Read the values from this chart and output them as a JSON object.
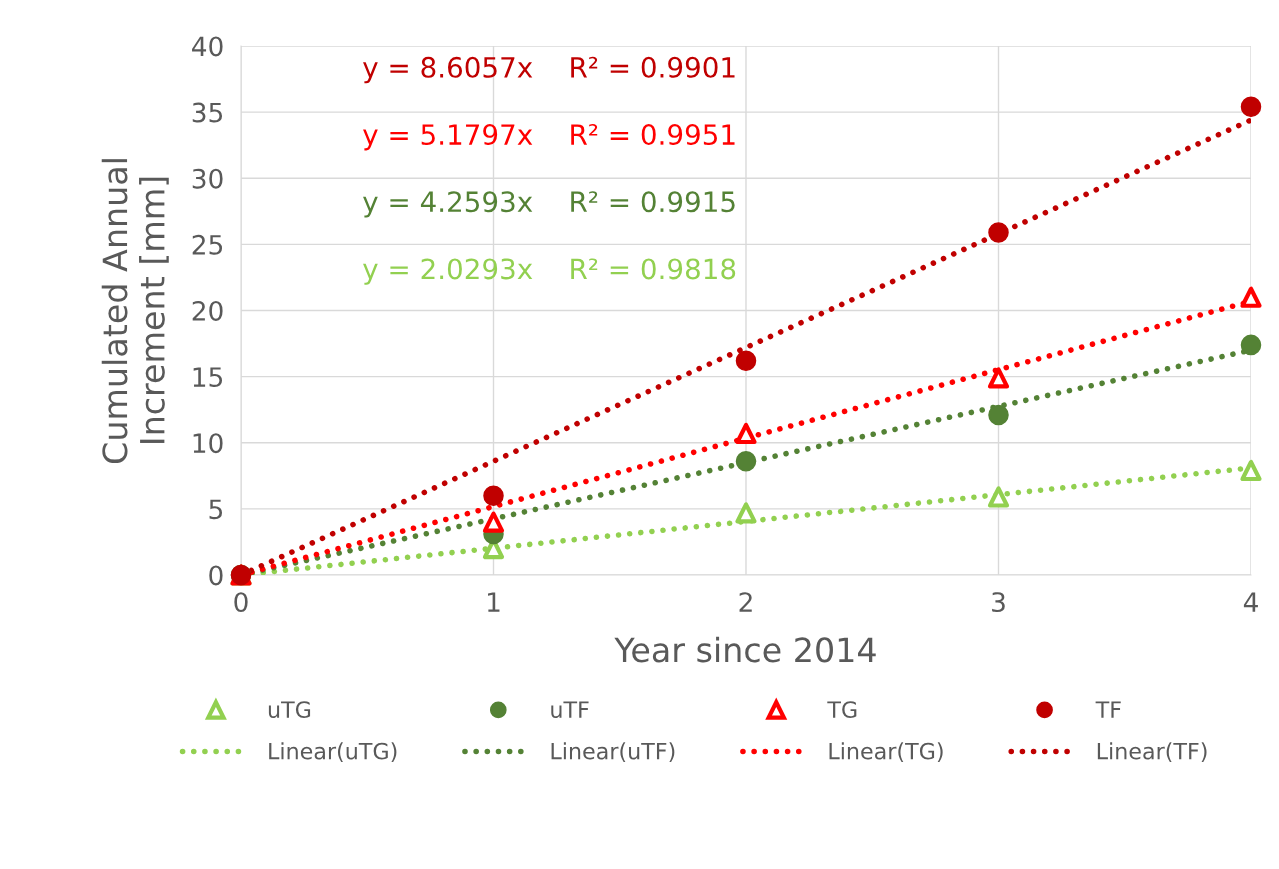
{
  "chart_data": {
    "type": "scatter",
    "xlabel": "Year since 2014",
    "ylabel": "Cumulated Annual\nIncrement [mm]",
    "xlim": [
      0,
      4
    ],
    "xticks": [
      0,
      1,
      2,
      3,
      4
    ],
    "ylim": [
      0,
      40
    ],
    "yticks": [
      0,
      5,
      10,
      15,
      20,
      25,
      30,
      35,
      40
    ],
    "grid": true,
    "legend": "bottom",
    "series": [
      {
        "name": "uTG",
        "marker": "triangle",
        "color": "#92d050",
        "x": [
          0,
          1,
          2,
          3,
          4
        ],
        "values": [
          0,
          2.0,
          4.7,
          5.9,
          7.9
        ]
      },
      {
        "name": "Linear(uTG)",
        "type": "line",
        "marker": "none",
        "line_style": "dotted",
        "color": "#92d050",
        "x": [
          0,
          4
        ],
        "values": [
          0,
          8.1
        ]
      },
      {
        "name": "uTF",
        "marker": "circle",
        "color": "#548235",
        "x": [
          0,
          1,
          2,
          3,
          4
        ],
        "values": [
          0,
          3.1,
          8.6,
          12.1,
          17.4
        ]
      },
      {
        "name": "Linear(uTF)",
        "type": "line",
        "marker": "none",
        "line_style": "dotted",
        "color": "#548235",
        "x": [
          0,
          4
        ],
        "values": [
          0,
          17.0
        ]
      },
      {
        "name": "TG",
        "marker": "triangle",
        "color": "#ff0000",
        "x": [
          0,
          1,
          2,
          3,
          4
        ],
        "values": [
          0,
          4.0,
          10.7,
          14.9,
          21.0
        ]
      },
      {
        "name": "Linear(TG)",
        "type": "line",
        "marker": "none",
        "line_style": "dotted",
        "color": "#ff0000",
        "x": [
          0,
          4
        ],
        "values": [
          0,
          20.7
        ]
      },
      {
        "name": "TF",
        "marker": "circle",
        "color": "#c00000",
        "x": [
          0,
          1,
          2,
          3,
          4
        ],
        "values": [
          0,
          6.0,
          16.2,
          25.9,
          35.4
        ]
      },
      {
        "name": "Linear(TF)",
        "type": "line",
        "marker": "none",
        "line_style": "dotted",
        "color": "#c00000",
        "x": [
          0,
          4
        ],
        "values": [
          0,
          34.4
        ]
      }
    ],
    "annotations": [
      "y = 8.6057x    R² = 0.9901",
      "y = 5.1797x    R² = 0.9951",
      "y = 4.2593x    R² = 0.9915",
      "y = 2.0293x    R² = 0.9818"
    ]
  }
}
